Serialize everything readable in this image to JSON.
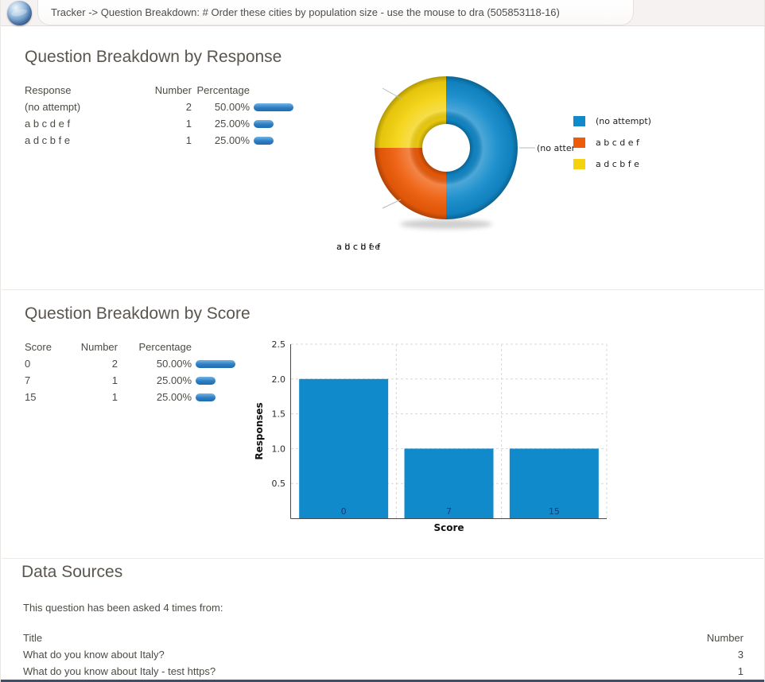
{
  "header": {
    "title": "Tracker -> Question Breakdown: # Order these cities by population size - use the mouse to dra (505853118-16)",
    "logo_icon": "globe-logo"
  },
  "colors": {
    "blue": "#118acb",
    "orange": "#ef5c09",
    "yellow": "#f4d20d",
    "pill_light": "#71b5e5",
    "pill_mid": "#2d7dc1",
    "pill_dark": "#1e6cb1",
    "bar_value_label": "#1c3976"
  },
  "response_section": {
    "title": "Question Breakdown by Response",
    "table": {
      "headers": {
        "response": "Response",
        "number": "Number",
        "percentage": "Percentage"
      },
      "rows": [
        {
          "label": "(no attempt)",
          "number": "2",
          "percentage": "50.00%",
          "pct": 50
        },
        {
          "label": "a b c d e f",
          "number": "1",
          "percentage": "25.00%",
          "pct": 25
        },
        {
          "label": "a d c b f e",
          "number": "1",
          "percentage": "25.00%",
          "pct": 25
        }
      ]
    }
  },
  "score_section": {
    "title": "Question Breakdown by Score",
    "table": {
      "headers": {
        "score": "Score",
        "number": "Number",
        "percentage": "Percentage"
      },
      "rows": [
        {
          "label": "0",
          "number": "2",
          "percentage": "50.00%",
          "pct": 50
        },
        {
          "label": "7",
          "number": "1",
          "percentage": "25.00%",
          "pct": 25
        },
        {
          "label": "15",
          "number": "1",
          "percentage": "25.00%",
          "pct": 25
        }
      ]
    }
  },
  "chart_data": [
    {
      "type": "pie",
      "title": "Question Breakdown by Response",
      "labels": [
        "(no attempt)",
        "a b c d e f",
        "a d c b f e"
      ],
      "values": [
        2,
        1,
        1
      ],
      "percentages": [
        50,
        25,
        25
      ],
      "colors": [
        "#118acb",
        "#ef5c09",
        "#f4d20d"
      ],
      "donut": true,
      "legend_position": "right"
    },
    {
      "type": "bar",
      "title": "Question Breakdown by Score",
      "categories": [
        "0",
        "7",
        "15"
      ],
      "values": [
        2,
        1,
        1
      ],
      "xlabel": "Score",
      "ylabel": "Responses",
      "ylim": [
        0,
        2.5
      ],
      "yticks": [
        "0.5",
        "1.0",
        "1.5",
        "2.0",
        "2.5"
      ],
      "grid": "dashed",
      "bar_color": "#118acb"
    }
  ],
  "sources_section": {
    "title": "Data Sources",
    "intro": "This question has been asked 4 times from:",
    "table": {
      "headers": {
        "title": "Title",
        "number": "Number"
      },
      "rows": [
        {
          "title": "What do you know about Italy?",
          "number": "3"
        },
        {
          "title": "What do you know about Italy - test https?",
          "number": "1"
        }
      ]
    }
  }
}
